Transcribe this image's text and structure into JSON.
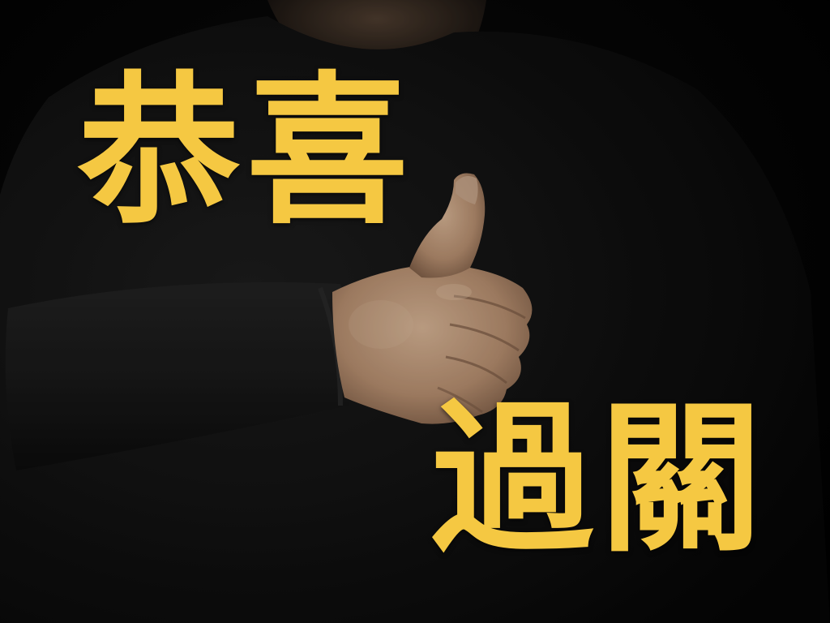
{
  "colors": {
    "text": "#f5c842",
    "background": "#000000",
    "shirt": "#151515",
    "skin": "#c9a383",
    "skin_shadow": "#8a6a52"
  },
  "image": {
    "subject": "person-thumbs-up-icon"
  },
  "caption": {
    "top": "恭喜",
    "bottom": "過關"
  }
}
